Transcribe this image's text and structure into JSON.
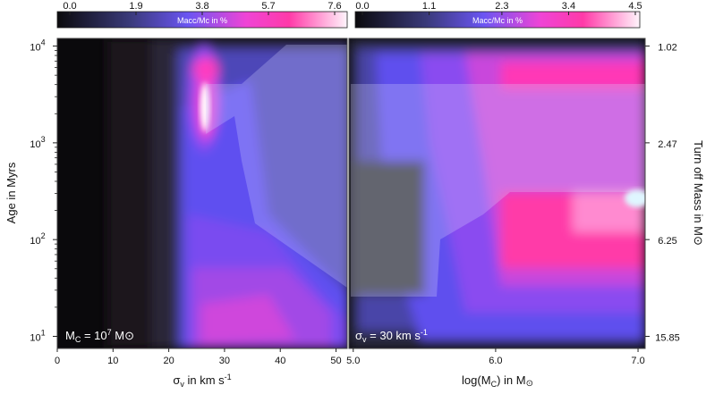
{
  "chart_data": [
    {
      "type": "heatmap",
      "panel": "left",
      "xlabel": "σ<sub>v</sub> in km s<sup>-1</sup>",
      "xlabel_text": "σv in km s-1",
      "ylabel": "Age in Myrs",
      "x_ticks": [
        "0",
        "10",
        "20",
        "30",
        "40",
        "50"
      ],
      "x_tick_values": [
        0,
        10,
        20,
        30,
        40,
        50
      ],
      "xlim": [
        0,
        52
      ],
      "y_scale": "log",
      "y_ticks": [
        "10¹",
        "10²",
        "10³",
        "10⁴"
      ],
      "y_tick_values": [
        10,
        100,
        1000,
        10000
      ],
      "ylim": [
        7.5,
        12000
      ],
      "annotation": "MC = 10⁷ M⊙",
      "colorbar": {
        "label": "Macc/Mc in %",
        "ticks": [
          "0.0",
          "1.9",
          "3.8",
          "5.7",
          "7.6"
        ],
        "tick_values": [
          0.0,
          1.9,
          3.8,
          5.7,
          7.6
        ],
        "range": [
          0.0,
          7.6
        ]
      },
      "overlay_region": {
        "description_values": "shaded region in sigma-age space",
        "points": [
          [
            25,
            3800
          ],
          [
            32,
            3800
          ],
          [
            38,
            9500
          ],
          [
            52,
            9500
          ],
          [
            52,
            40
          ],
          [
            30,
            100
          ],
          [
            27,
            1700
          ],
          [
            30,
            1500
          ],
          [
            25,
            1400
          ]
        ]
      }
    },
    {
      "type": "heatmap",
      "panel": "right",
      "xlabel_text": "log(MC) in M⊙",
      "x_ticks": [
        "5.0",
        "6.0",
        "7.0"
      ],
      "x_tick_values": [
        5.0,
        6.0,
        7.0
      ],
      "xlim": [
        4.97,
        7.05
      ],
      "y_scale": "log",
      "ylim": [
        7.5,
        12000
      ],
      "y2label": "Turn off Mass in M⊙",
      "y2_ticks": [
        "1.02",
        "2.47",
        "6.25",
        "15.85"
      ],
      "y2_tick_values_age": [
        10000,
        1000,
        100,
        10
      ],
      "annotation": "σv = 30 km s⁻¹",
      "colorbar": {
        "label": "Macc/Mc in %",
        "ticks": [
          "0.0",
          "1.1",
          "2.3",
          "3.4",
          "4.5"
        ],
        "tick_values": [
          0.0,
          1.1,
          2.3,
          3.4,
          4.5
        ],
        "range": [
          0.0,
          4.5
        ]
      },
      "overlay_region": {
        "points": [
          [
            5.0,
            3800
          ],
          [
            7.05,
            3800
          ],
          [
            7.05,
            450
          ],
          [
            6.15,
            450
          ],
          [
            5.85,
            100
          ],
          [
            5.7,
            35
          ],
          [
            5.0,
            35
          ]
        ]
      }
    }
  ],
  "text": {
    "left_xlabel_main": "σ",
    "left_xlabel_sub": "v",
    "left_xlabel_rest": " in km s",
    "left_xlabel_sup": "-1",
    "ylabel": "Age in Myrs",
    "right_xlabel_main": "log(M",
    "right_xlabel_sub": "C",
    "right_xlabel_rest": ") in M",
    "right_xlabel_sun": "⊙",
    "y2label": "Turn off Mass in M⊙",
    "left_ann_a": "M",
    "left_ann_sub": "C",
    "left_ann_b": " = 10",
    "left_ann_sup": "7",
    "left_ann_c": " M⊙",
    "right_ann_a": "σ",
    "right_ann_sub": "v",
    "right_ann_b": " = 30 km s",
    "right_ann_sup": "-1",
    "cb_left_label": "Macc/Mc in %",
    "cb_right_label": "Macc/Mc in %"
  },
  "colors": {
    "background": "#000000",
    "dark": "#141216",
    "blue": "#5a52ee",
    "magenta": "#ef44d6",
    "pink": "#ff33b4",
    "white": "#ffffff",
    "cyan": "#dff6ff"
  }
}
